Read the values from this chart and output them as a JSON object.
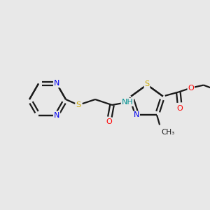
{
  "bg_color": "#e8e8e8",
  "bond_color": "#1a1a1a",
  "bond_width": 1.6,
  "atom_colors": {
    "N": "#0000ee",
    "S": "#ccaa00",
    "O": "#ff0000",
    "NH": "#009090",
    "C": "#1a1a1a"
  },
  "figsize": [
    3.0,
    3.0
  ],
  "dpi": 100,
  "xlim": [
    0,
    300
  ],
  "ylim": [
    0,
    300
  ]
}
